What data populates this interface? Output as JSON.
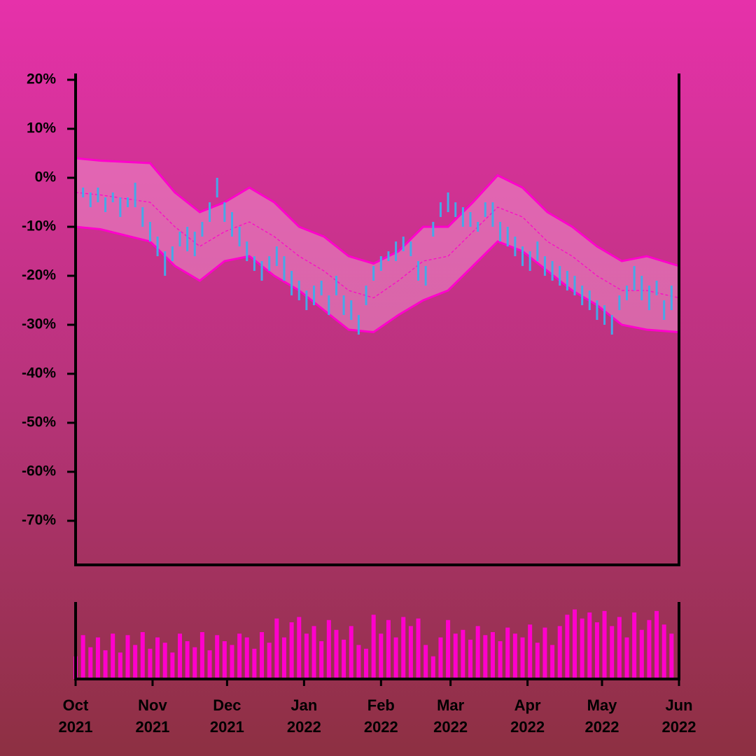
{
  "chart_data": [
    {
      "type": "candlestick",
      "color": "#45a9e8",
      "xlim": [
        0,
        243
      ],
      "ylim": [
        -79,
        21
      ],
      "yticks": [
        {
          "value": 20,
          "label": "20%"
        },
        {
          "value": 10,
          "label": "10%"
        },
        {
          "value": 0,
          "label": "0%"
        },
        {
          "value": -10,
          "label": "-10%"
        },
        {
          "value": -20,
          "label": "-20%"
        },
        {
          "value": -30,
          "label": "-30%"
        },
        {
          "value": -40,
          "label": "-40%"
        },
        {
          "value": -50,
          "label": "-50%"
        },
        {
          "value": -60,
          "label": "-60%"
        },
        {
          "value": -70,
          "label": "-70%"
        }
      ],
      "x": [
        0,
        3,
        6,
        9,
        12,
        15,
        18,
        21,
        24,
        27,
        30,
        33,
        36,
        39,
        42,
        45,
        48,
        51,
        54,
        57,
        60,
        63,
        66,
        69,
        72,
        75,
        78,
        81,
        84,
        87,
        90,
        93,
        96,
        99,
        102,
        105,
        108,
        111,
        114,
        117,
        120,
        123,
        126,
        129,
        132,
        135,
        138,
        141,
        144,
        147,
        150,
        153,
        156,
        159,
        162,
        165,
        168,
        171,
        174,
        177,
        180,
        183,
        186,
        189,
        192,
        195,
        198,
        201,
        204,
        207,
        210,
        213,
        216,
        219,
        222,
        225,
        228,
        231,
        234,
        237,
        240
      ],
      "open": [
        -2,
        -4,
        -3,
        -2,
        -4,
        -5,
        -4,
        -6,
        -1,
        -6,
        -9,
        -12,
        -15,
        -17,
        -11,
        -10,
        -11,
        -12,
        -9,
        0,
        -5,
        -7,
        -10,
        -13,
        -16,
        -17,
        -19,
        -14,
        -16,
        -19,
        -21,
        -23,
        -22,
        -24,
        -24,
        -20,
        -24,
        -25,
        -28,
        -26,
        -21,
        -19,
        -17,
        -13,
        -12,
        -16,
        -17,
        -18,
        -12,
        -8,
        -3,
        -5,
        -6,
        -7,
        -9,
        -8,
        -5,
        -9,
        -10,
        -12,
        -14,
        -15,
        -13,
        -16,
        -17,
        -18,
        -19,
        -20,
        -22,
        -23,
        -25,
        -26,
        -28,
        -27,
        -25,
        -18,
        -20,
        -22,
        -21,
        -25,
        -22
      ],
      "close": [
        -5,
        -2,
        -6,
        -5,
        -7,
        -3,
        -8,
        -4,
        -6,
        -10,
        -13,
        -16,
        -20,
        -14,
        -14,
        -15,
        -16,
        -9,
        -5,
        -4,
        -9,
        -12,
        -14,
        -17,
        -19,
        -21,
        -16,
        -18,
        -21,
        -24,
        -25,
        -27,
        -26,
        -21,
        -28,
        -24,
        -28,
        -29,
        -32,
        -22,
        -18,
        -16,
        -15,
        -17,
        -15,
        -13,
        -21,
        -22,
        -9,
        -5,
        -7,
        -8,
        -10,
        -10,
        -11,
        -5,
        -10,
        -13,
        -14,
        -16,
        -18,
        -19,
        -17,
        -20,
        -21,
        -22,
        -23,
        -24,
        -26,
        -27,
        -29,
        -30,
        -32,
        -24,
        -22,
        -23,
        -25,
        -27,
        -24,
        -29,
        -27
      ],
      "band": {
        "color": "#ff00cc",
        "fill": "#f7a3d6",
        "x": [
          0,
          10,
          30,
          40,
          50,
          60,
          70,
          80,
          90,
          100,
          110,
          120,
          130,
          140,
          150,
          160,
          170,
          180,
          190,
          200,
          210,
          220,
          230,
          243
        ],
        "upper": [
          4,
          3.5,
          3,
          -3,
          -7,
          -5,
          -2,
          -5,
          -10,
          -12,
          -16,
          -17.5,
          -15,
          -10,
          -10,
          -5,
          0.5,
          -2,
          -7,
          -10,
          -14,
          -17,
          -16,
          -18
        ],
        "middle": [
          -3,
          -3.5,
          -5,
          -10,
          -14,
          -11,
          -9,
          -12,
          -16,
          -19,
          -23,
          -24.5,
          -21,
          -17,
          -16,
          -11,
          -6,
          -8,
          -13,
          -16,
          -20,
          -23,
          -23,
          -24.5
        ],
        "lower": [
          -10,
          -10.5,
          -13,
          -18,
          -21,
          -17,
          -16,
          -20,
          -23,
          -27,
          -31,
          -31.5,
          -28,
          -25,
          -23,
          -18,
          -13,
          -15,
          -19,
          -23,
          -26,
          -30,
          -31,
          -31.5
        ]
      }
    },
    {
      "type": "bar",
      "color": "#ff00cc",
      "xlim": [
        0,
        243
      ],
      "ylim": [
        0,
        100
      ],
      "xticks": [
        {
          "value": 0,
          "label": "Oct 2021"
        },
        {
          "value": 31,
          "label": "Nov 2021"
        },
        {
          "value": 61,
          "label": "Dec 2021"
        },
        {
          "value": 92,
          "label": "Jan 2022"
        },
        {
          "value": 123,
          "label": "Feb 2022"
        },
        {
          "value": 151,
          "label": "Mar 2022"
        },
        {
          "value": 182,
          "label": "Apr 2022"
        },
        {
          "value": 212,
          "label": "May 2022"
        },
        {
          "value": 243,
          "label": "Jun 2022"
        }
      ],
      "x": [
        0,
        3,
        6,
        9,
        12,
        15,
        18,
        21,
        24,
        27,
        30,
        33,
        36,
        39,
        42,
        45,
        48,
        51,
        54,
        57,
        60,
        63,
        66,
        69,
        72,
        75,
        78,
        81,
        84,
        87,
        90,
        93,
        96,
        99,
        102,
        105,
        108,
        111,
        114,
        117,
        120,
        123,
        126,
        129,
        132,
        135,
        138,
        141,
        144,
        147,
        150,
        153,
        156,
        159,
        162,
        165,
        168,
        171,
        174,
        177,
        180,
        183,
        186,
        189,
        192,
        195,
        198,
        201,
        204,
        207,
        210,
        213,
        216,
        219,
        222,
        225,
        228,
        231,
        234,
        237,
        240
      ],
      "values": [
        30,
        58,
        42,
        55,
        38,
        60,
        35,
        58,
        45,
        62,
        40,
        55,
        48,
        35,
        60,
        50,
        42,
        62,
        38,
        58,
        50,
        45,
        60,
        55,
        40,
        62,
        48,
        80,
        55,
        75,
        82,
        60,
        70,
        50,
        78,
        65,
        52,
        70,
        45,
        40,
        85,
        60,
        78,
        55,
        82,
        70,
        80,
        45,
        30,
        55,
        78,
        60,
        65,
        52,
        70,
        58,
        62,
        50,
        68,
        60,
        55,
        72,
        48,
        68,
        45,
        70,
        85,
        92,
        80,
        88,
        75,
        90,
        70,
        82,
        55,
        88,
        65,
        78,
        90,
        72,
        60
      ]
    }
  ]
}
